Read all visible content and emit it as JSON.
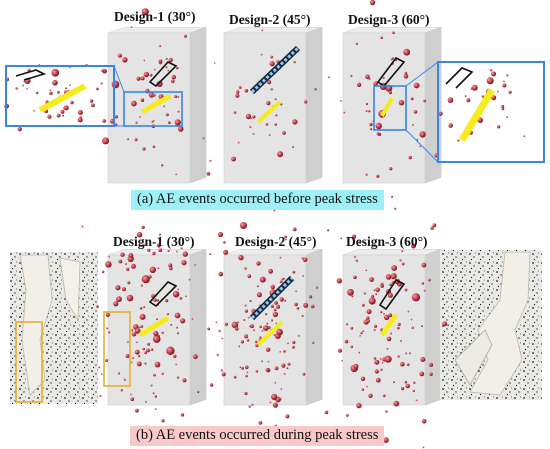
{
  "panel_a": {
    "caption": "(a) AE events occurred before peak stress",
    "labels": [
      "Design-1 (30°)",
      "Design-2 (45°)",
      "Design-3 (60°)"
    ]
  },
  "panel_b": {
    "caption": "(b) AE events occurred during peak stress",
    "labels": [
      "Design-1 (30°)",
      "Design-2 (45°)",
      "Design-3 (60°)"
    ]
  },
  "colors": {
    "specimen_front": "#e4e4e4",
    "specimen_side": "#cfcfcf",
    "ae_event": "#c8414c",
    "flaw_yellow": "#f5ec1a",
    "flaw_dashed": "#1e4f7a",
    "zoom_box": "#3a86e8",
    "crack_box": "#e8b02a",
    "caption_a_bg": "#9df1f6",
    "caption_b_bg": "#f9c9c9"
  }
}
